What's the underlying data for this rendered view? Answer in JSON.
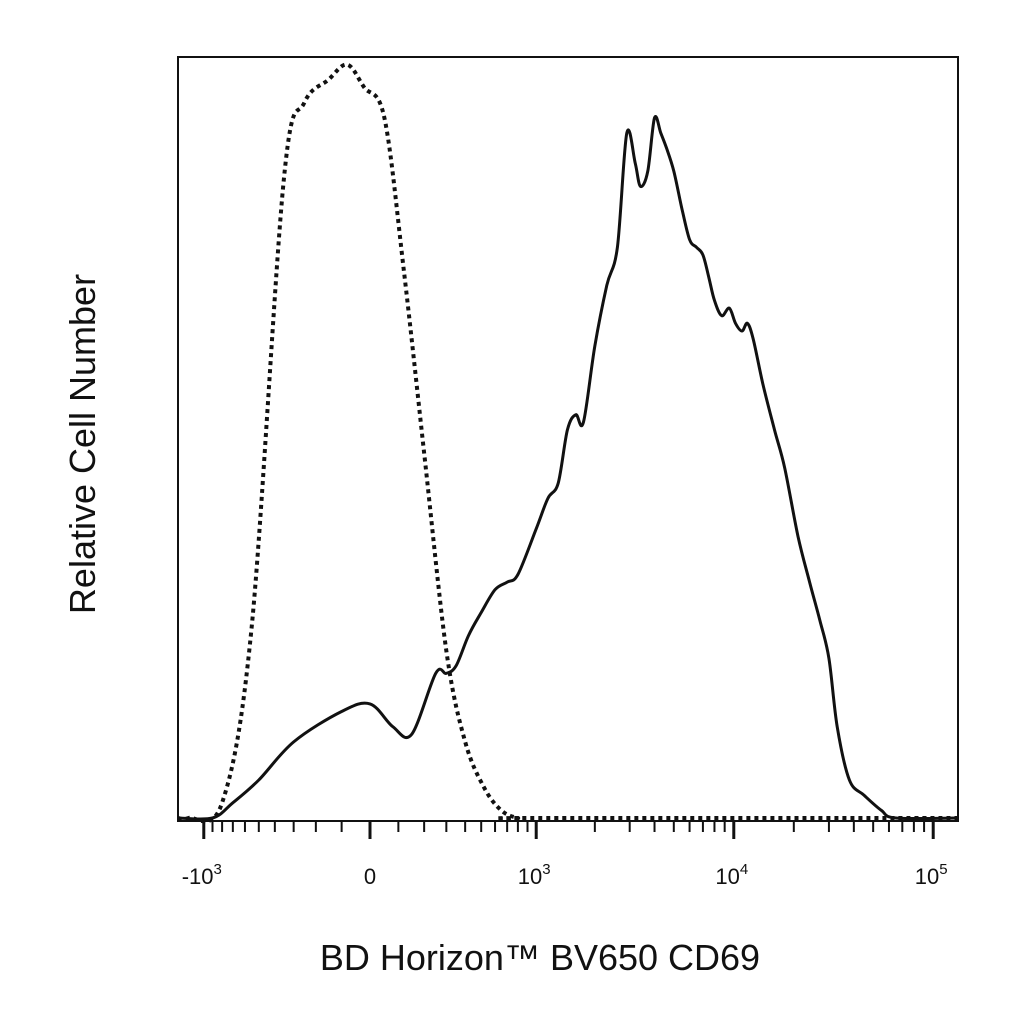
{
  "chart_data": {
    "type": "line",
    "xlabel": "BD Horizon™ BV650 CD69",
    "ylabel": "Relative Cell Number",
    "x_scale": "biexponential",
    "xlim": [
      -3000,
      200000
    ],
    "ylim": [
      0,
      1.0
    ],
    "grid": false,
    "legend": "none",
    "x_tick_labels": [
      {
        "value": -1000,
        "base": "-10",
        "exp": "3"
      },
      {
        "value": 0,
        "base": "0",
        "exp": ""
      },
      {
        "value": 1000,
        "base": "10",
        "exp": "3"
      },
      {
        "value": 10000,
        "base": "10",
        "exp": "4"
      },
      {
        "value": 100000,
        "base": "10",
        "exp": "5"
      }
    ],
    "series": [
      {
        "style": "dotted",
        "color": "#111111",
        "x": [
          -1200,
          -800,
          -550,
          -350,
          -250,
          -150,
          -80,
          -20,
          50,
          120,
          200,
          300,
          400,
          520,
          650,
          800,
          950
        ],
        "y": [
          0.0,
          0.02,
          0.25,
          0.84,
          0.94,
          0.97,
          0.99,
          0.96,
          0.92,
          0.72,
          0.48,
          0.22,
          0.1,
          0.04,
          0.01,
          0.0,
          0.0
        ]
      },
      {
        "style": "solid",
        "color": "#111111",
        "x": [
          -900,
          -700,
          -500,
          -300,
          -100,
          0,
          80,
          150,
          250,
          300,
          350,
          420,
          500,
          600,
          700,
          800,
          1000,
          1150,
          1300,
          1450,
          1600,
          1750,
          2000,
          2300,
          2600,
          2900,
          3200,
          3400,
          3700,
          4000,
          4300,
          4600,
          5000,
          5500,
          6000,
          6500,
          7000,
          7500,
          8000,
          8700,
          9500,
          10200,
          11000,
          11700,
          12500,
          14000,
          16000,
          18000,
          21000,
          24000,
          27000,
          30000,
          33000,
          38000,
          45000,
          55000,
          65000
        ],
        "y": [
          0.0,
          0.02,
          0.05,
          0.1,
          0.14,
          0.15,
          0.12,
          0.11,
          0.19,
          0.19,
          0.2,
          0.24,
          0.27,
          0.3,
          0.31,
          0.32,
          0.38,
          0.42,
          0.44,
          0.51,
          0.53,
          0.52,
          0.62,
          0.7,
          0.75,
          0.9,
          0.86,
          0.83,
          0.85,
          0.92,
          0.9,
          0.88,
          0.85,
          0.8,
          0.76,
          0.75,
          0.74,
          0.71,
          0.68,
          0.66,
          0.67,
          0.65,
          0.64,
          0.65,
          0.63,
          0.57,
          0.51,
          0.46,
          0.37,
          0.31,
          0.26,
          0.21,
          0.12,
          0.05,
          0.03,
          0.01,
          0.0
        ]
      }
    ]
  }
}
